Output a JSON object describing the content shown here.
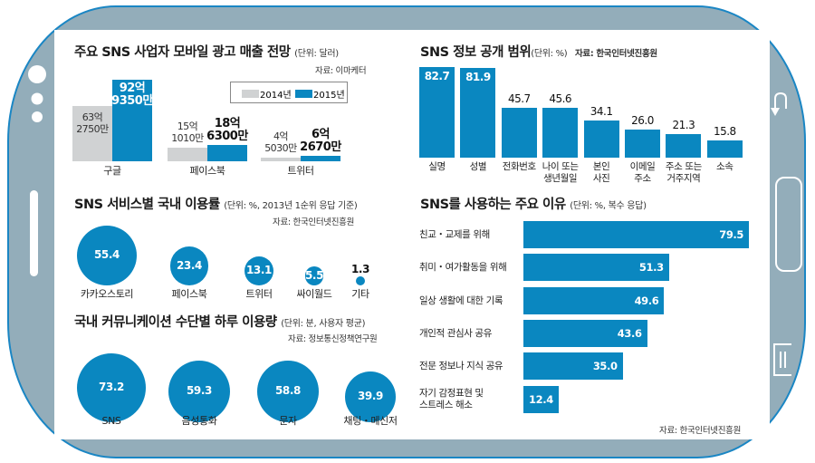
{
  "device": {
    "frame_color": "#93adba",
    "outline_color": "#1a86c4",
    "buttons": {
      "back_icon": "back-arrow-icon",
      "home_icon": "home-button-icon",
      "menu_icon": "menu-icon"
    }
  },
  "colors": {
    "accent_blue": "#0a87c0",
    "gray_2014": "#d0d2d3"
  },
  "chart_data": [
    {
      "id": "ad_revenue",
      "type": "bar",
      "title": "주요 SNS 사업자 모바일 광고 매출 전망",
      "unit": "(단위: 달러)",
      "source": "자료: 이마케터",
      "categories": [
        "구글",
        "페이스북",
        "트위터"
      ],
      "legend": [
        "2014년",
        "2015년"
      ],
      "legend_position": "top-right",
      "series": [
        {
          "name": "2014년",
          "values": [
            6327500000,
            1510100000,
            450300000
          ],
          "labels": [
            "63억\n2750만",
            "15억\n1010만",
            "4억\n5030만"
          ]
        },
        {
          "name": "2015년",
          "values": [
            9293500000,
            1863000000,
            626700000
          ],
          "labels": [
            "92억\n9350만",
            "18억\n6300만",
            "6억\n2670만"
          ]
        }
      ]
    },
    {
      "id": "info_disclosure",
      "type": "bar",
      "title": "SNS 정보 공개 범위",
      "unit": "(단위: %)",
      "source": "자료: 한국인터넷진흥원",
      "categories": [
        "실명",
        "성별",
        "전화번호",
        "나이 또는\n생년월일",
        "본인\n사진",
        "이메일\n주소",
        "주소 또는\n거주지역",
        "소속"
      ],
      "values": [
        82.7,
        81.9,
        45.7,
        45.6,
        34.1,
        26.0,
        21.3,
        15.8
      ],
      "value_labels": [
        "82.7",
        "81.9",
        "45.7",
        "45.6",
        "34.1",
        "26.0",
        "21.3",
        "15.8"
      ],
      "ylim": [
        0,
        85
      ]
    },
    {
      "id": "sns_usage_share",
      "type": "scatter",
      "title": "SNS 서비스별 국내 이용률",
      "unit": "(단위: %, 2013년 1순위 응답 기준)",
      "source": "자료: 한국인터넷진흥원",
      "categories": [
        "카카오스토리",
        "페이스북",
        "트위터",
        "싸이월드",
        "기타"
      ],
      "values": [
        55.4,
        23.4,
        13.1,
        5.5,
        1.3
      ],
      "value_labels": [
        "55.4",
        "23.4",
        "13.1",
        "5.5",
        "1.3"
      ]
    },
    {
      "id": "daily_usage_minutes",
      "type": "scatter",
      "title": "국내 커뮤니케이션 수단별 하루 이용량",
      "unit": "(단위: 분, 사용자 평균)",
      "source": "자료: 정보통신정책연구원",
      "categories": [
        "SNS",
        "음성통화",
        "문자",
        "채팅・메신저"
      ],
      "values": [
        73.2,
        59.3,
        58.8,
        39.9
      ],
      "value_labels": [
        "73.2",
        "59.3",
        "58.8",
        "39.9"
      ]
    },
    {
      "id": "usage_reasons",
      "type": "bar",
      "orientation": "horizontal",
      "title": "SNS를 사용하는 주요 이유",
      "unit": "(단위: %, 복수 응답)",
      "source": "자료: 한국인터넷진흥원",
      "categories": [
        "친교・교제를 위해",
        "취미・여가활동을 위해",
        "일상 생활에 대한 기록",
        "개인적 관심사 공유",
        "전문 정보나 지식 공유",
        "자기 감정표현 및\n스트레스 해소"
      ],
      "values": [
        79.5,
        51.3,
        49.6,
        43.6,
        35.0,
        12.4
      ],
      "value_labels": [
        "79.5",
        "51.3",
        "49.6",
        "43.6",
        "35.0",
        "12.4"
      ],
      "xlim": [
        0,
        80
      ]
    }
  ]
}
